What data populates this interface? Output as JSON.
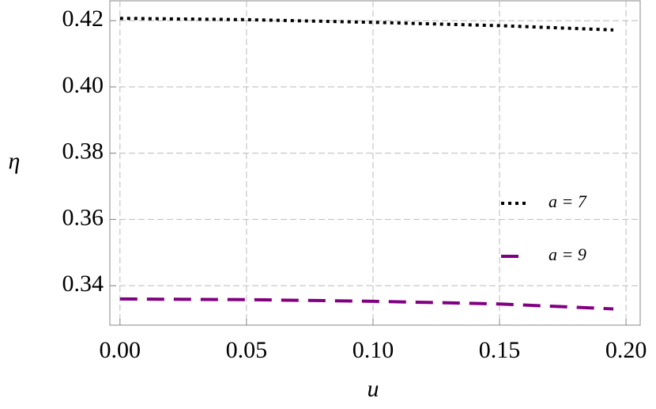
{
  "chart_data": {
    "type": "line",
    "x_label": "u",
    "y_label": "η",
    "x": [
      0,
      0.05,
      0.1,
      0.15,
      0.195
    ],
    "series": [
      {
        "name": "a = 7",
        "color": "#000000",
        "style": "dotted",
        "values": [
          0.4207,
          0.4203,
          0.4195,
          0.4185,
          0.4172
        ]
      },
      {
        "name": "a = 9",
        "color": "#800080",
        "style": "dashed",
        "values": [
          0.336,
          0.3358,
          0.3353,
          0.3345,
          0.333
        ]
      }
    ],
    "xlim": [
      -0.004,
      0.2056
    ],
    "ylim": [
      0.3281,
      0.426
    ],
    "xticks": [
      {
        "value": 0,
        "label": "0.00"
      },
      0.05,
      {
        "value": 0.1,
        "label": "0.10"
      },
      0.15,
      {
        "value": 0.2,
        "label": "0.20"
      }
    ],
    "yticks": [
      0.34,
      0.36,
      0.38,
      {
        "value": 0.4,
        "label": "0.40"
      },
      0.42
    ],
    "grid": true,
    "legend": "right"
  }
}
